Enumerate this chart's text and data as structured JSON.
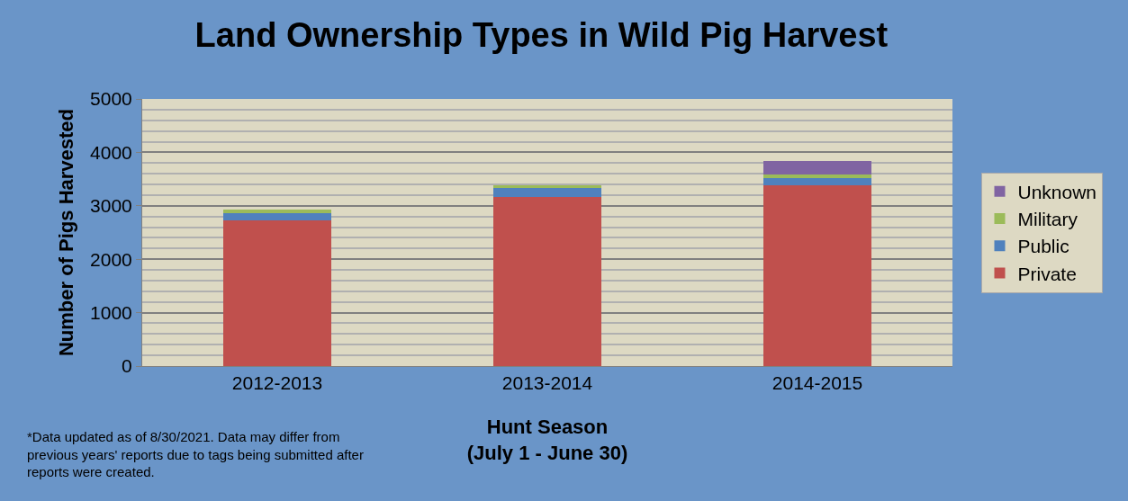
{
  "chart_data": {
    "type": "bar",
    "stacked": true,
    "title": "Land Ownership Types in Wild Pig Harvest",
    "xlabel": "Hunt Season\n(July 1 - June 30)",
    "ylabel": "Number of Pigs Harvested",
    "categories": [
      "2012-2013",
      "2013-2014",
      "2014-2015"
    ],
    "series": [
      {
        "name": "Private",
        "color": "#c0504d",
        "values": [
          2720,
          3170,
          3380
        ]
      },
      {
        "name": "Public",
        "color": "#4f81bd",
        "values": [
          150,
          160,
          140
        ]
      },
      {
        "name": "Military",
        "color": "#9bbb59",
        "values": [
          60,
          60,
          60
        ]
      },
      {
        "name": "Unknown",
        "color": "#8064a2",
        "values": [
          0,
          0,
          260
        ]
      }
    ],
    "ylim": [
      0,
      5000
    ],
    "yticks": [
      0,
      {
        "value": 200,
        "label": null
      },
      {
        "value": 400,
        "label": null
      },
      {
        "value": 600,
        "label": null
      },
      {
        "value": 800,
        "label": null
      },
      1000,
      {
        "value": 1200,
        "label": null
      },
      {
        "value": 1400,
        "label": null
      },
      {
        "value": 1600,
        "label": null
      },
      {
        "value": 1800,
        "label": null
      },
      2000,
      {
        "value": 2200,
        "label": null
      },
      {
        "value": 2400,
        "label": null
      },
      {
        "value": 2600,
        "label": null
      },
      {
        "value": 2800,
        "label": null
      },
      3000,
      {
        "value": 3200,
        "label": null
      },
      {
        "value": 3400,
        "label": null
      },
      {
        "value": 3600,
        "label": null
      },
      {
        "value": 3800,
        "label": null
      },
      4000,
      {
        "value": 4200,
        "label": null
      },
      {
        "value": 4400,
        "label": null
      },
      {
        "value": 4600,
        "label": null
      },
      {
        "value": 4800,
        "label": null
      },
      5000
    ],
    "grid": "y",
    "legend": "right",
    "annotations": [
      "*Data updated as of 8/30/2021. Data may differ from\nprevious years' reports due to tags being submitted after\nreports were created."
    ]
  }
}
